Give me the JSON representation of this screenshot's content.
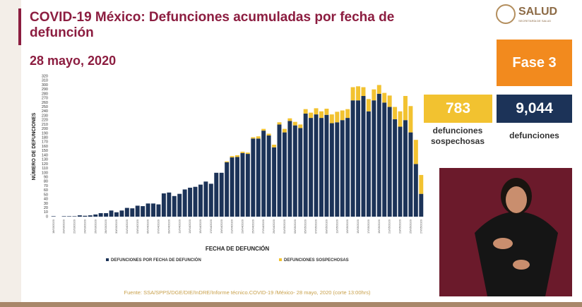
{
  "header": {
    "logo": "SALUD",
    "logo_sub": "SECRETARÍA DE SALUD"
  },
  "phase": "Fase 3",
  "stats": [
    {
      "value": "783",
      "label": "defunciones sospechosas"
    },
    {
      "value": "9,044",
      "label": "defunciones"
    }
  ],
  "source": "Fuente: SSA/SPPS/DGE/DIE/InDRE/Informe técnico.COVID-19 /México- 28 mayo, 2020 (corte 13:00hrs)",
  "chart_data": {
    "type": "bar",
    "stacked": true,
    "title": "COVID-19 México: Defunciones acumuladas por fecha de defunción",
    "subtitle": "28 mayo, 2020",
    "x_label": "FECHA DE DEFUNCIÓN",
    "y_label": "NÚMERO DE DEFUNCIONES",
    "categories": [
      "18/03/2020",
      null,
      "20/03/2020",
      null,
      "22/03/2020",
      null,
      "24/03/2020",
      null,
      "26/03/2020",
      null,
      "28/03/2020",
      null,
      "30/03/2020",
      null,
      "01/04/2020",
      null,
      "03/04/2020",
      null,
      "05/04/2020",
      null,
      "07/04/2020",
      null,
      "09/04/2020",
      null,
      "11/04/2020",
      null,
      "13/04/2020",
      null,
      "15/04/2020",
      null,
      "17/04/2020",
      null,
      "19/04/2020",
      null,
      "21/04/2020",
      null,
      "23/04/2020",
      null,
      "25/04/2020",
      null,
      "27/04/2020",
      null,
      "29/04/2020",
      null,
      "01/05/2020",
      null,
      "03/05/2020",
      null,
      "05/05/2020",
      null,
      "07/05/2020",
      null,
      "09/05/2020",
      null,
      "11/05/2020",
      null,
      "13/05/2020",
      null,
      "15/05/2020",
      null,
      "17/05/2020",
      null,
      "19/05/2020",
      null,
      "21/05/2020",
      null,
      "23/05/2020",
      null,
      "25/05/2020",
      null,
      "27/05/2020"
    ],
    "series": [
      {
        "name": "DEFUNCIONES POR FECHA DE DEFUNCIÓN",
        "color": "#1c3358",
        "values": [
          1,
          0,
          1,
          1,
          1,
          3,
          2,
          3,
          5,
          8,
          8,
          14,
          10,
          14,
          20,
          19,
          25,
          24,
          30,
          30,
          28,
          53,
          55,
          47,
          52,
          62,
          66,
          68,
          73,
          80,
          75,
          100,
          100,
          124,
          135,
          136,
          145,
          143,
          178,
          178,
          196,
          185,
          158,
          210,
          192,
          218,
          208,
          202,
          235,
          225,
          233,
          225,
          232,
          213,
          215,
          220,
          225,
          265,
          265,
          275,
          240,
          265,
          280,
          260,
          250,
          222,
          205,
          220,
          192,
          120,
          52
        ]
      },
      {
        "name": "DEFUNCIONES SOSPECHOSAS",
        "color": "#f2c230",
        "values": [
          0,
          0,
          0,
          0,
          0,
          0,
          0,
          0,
          0,
          0,
          0,
          0,
          0,
          0,
          0,
          0,
          0,
          0,
          0,
          0,
          0,
          0,
          0,
          0,
          0,
          0,
          0,
          0,
          0,
          0,
          0,
          0,
          0,
          2,
          3,
          4,
          3,
          3,
          3,
          5,
          4,
          4,
          6,
          5,
          8,
          6,
          8,
          8,
          10,
          12,
          14,
          15,
          14,
          20,
          24,
          22,
          20,
          30,
          32,
          20,
          28,
          25,
          20,
          22,
          26,
          28,
          35,
          55,
          60,
          55,
          43
        ]
      }
    ],
    "ylim": [
      0,
      320
    ],
    "yticks": [
      0,
      10,
      20,
      30,
      40,
      50,
      60,
      70,
      80,
      90,
      100,
      110,
      120,
      130,
      140,
      150,
      160,
      170,
      180,
      190,
      200,
      210,
      220,
      230,
      240,
      250,
      260,
      270,
      280,
      290,
      300,
      310,
      320
    ],
    "grid": false
  }
}
